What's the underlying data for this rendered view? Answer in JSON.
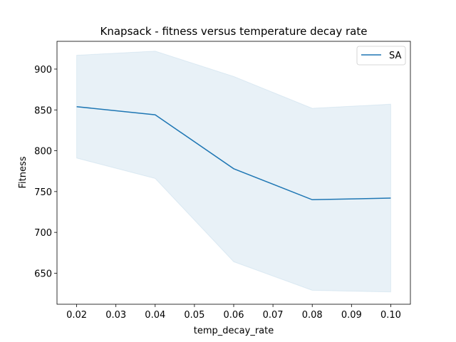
{
  "chart_data": {
    "type": "line",
    "title": "Knapsack - fitness versus temperature decay rate",
    "xlabel": "temp_decay_rate",
    "ylabel": "Fitness",
    "xlim": [
      0.015,
      0.105
    ],
    "ylim": [
      612,
      934
    ],
    "xticks": [
      0.02,
      0.03,
      0.04,
      0.05,
      0.06,
      0.07,
      0.08,
      0.09,
      0.1
    ],
    "xtick_labels": [
      "0.02",
      "0.03",
      "0.04",
      "0.05",
      "0.06",
      "0.07",
      "0.08",
      "0.09",
      "0.10"
    ],
    "yticks": [
      650,
      700,
      750,
      800,
      850,
      900
    ],
    "ytick_labels": [
      "650",
      "700",
      "750",
      "800",
      "850",
      "900"
    ],
    "grid": false,
    "legend_position": "top-right",
    "series": [
      {
        "name": "SA",
        "color": "#1f77b4",
        "x": [
          0.02,
          0.04,
          0.06,
          0.08,
          0.1
        ],
        "y": [
          854,
          844,
          778,
          740,
          742
        ],
        "ci_upper": [
          917,
          922,
          891,
          852,
          857
        ],
        "ci_lower": [
          791,
          766,
          664,
          629,
          627
        ],
        "band_color": "#1f77b4",
        "band_opacity": 0.1
      }
    ]
  }
}
